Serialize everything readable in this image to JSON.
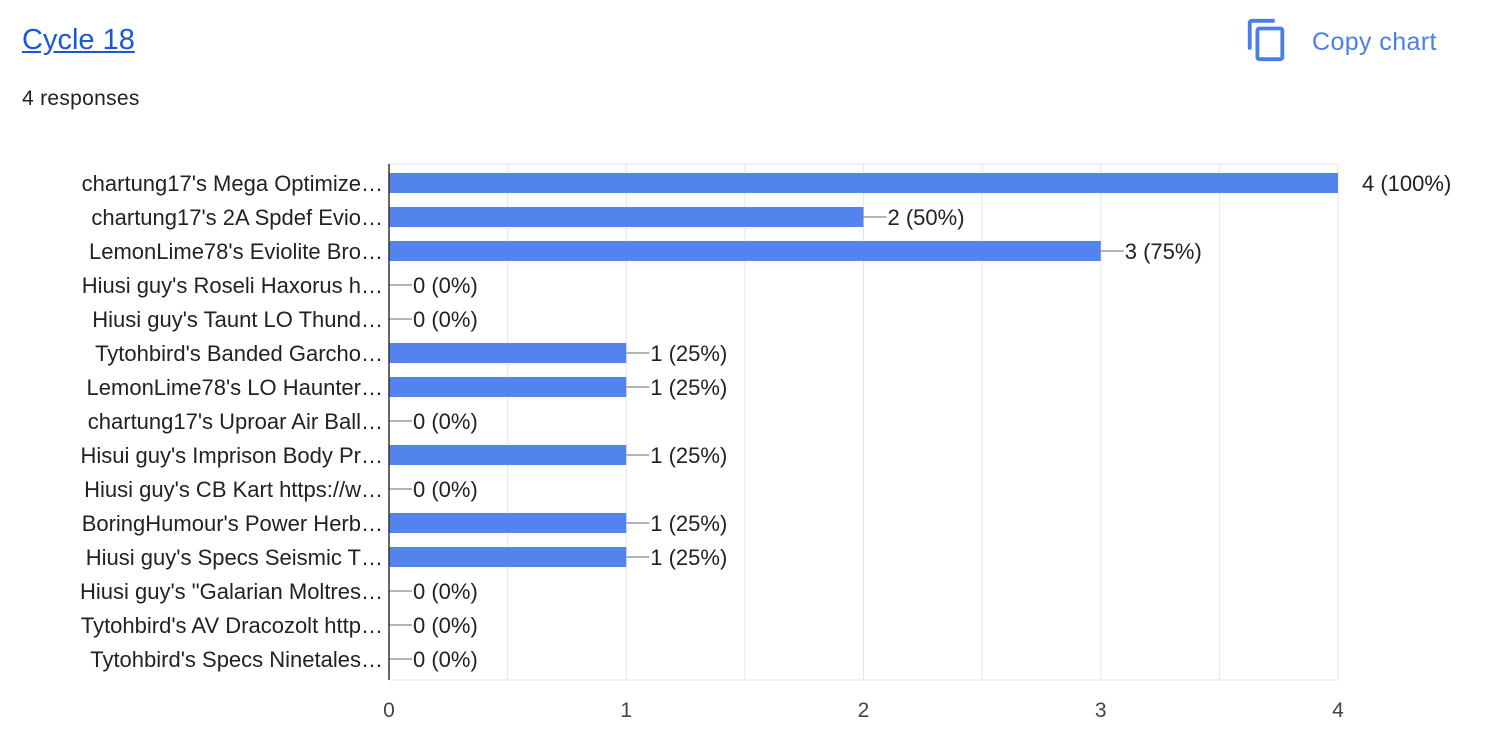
{
  "header": {
    "title": "Cycle 18",
    "responses": "4 responses",
    "copy_label": "Copy chart"
  },
  "icons": {
    "copy": "copy-icon"
  },
  "colors": {
    "bar": "#5383ec",
    "link": "#1a56d6",
    "accent": "#4a7fe8"
  },
  "chart_data": {
    "type": "bar",
    "orientation": "horizontal",
    "categories": [
      "chartung17's Mega Optimize…",
      "chartung17's 2A Spdef Evio…",
      "LemonLime78's Eviolite Bro…",
      "Hiusi guy's Roseli Haxorus h…",
      "Hiusi guy's Taunt LO Thund…",
      "Tytohbird's Banded Garcho…",
      "LemonLime78's LO Haunter…",
      "chartung17's Uproar Air Ball…",
      "Hisui guy's Imprison Body Pr…",
      "Hiusi guy's CB Kart https://w…",
      "BoringHumour's Power Herb…",
      "Hiusi guy's Specs Seismic T…",
      "Hiusi guy's \"Galarian Moltres…",
      "Tytohbird's AV Dracozolt http…",
      "Tytohbird's Specs Ninetales…"
    ],
    "values": [
      4,
      2,
      3,
      0,
      0,
      1,
      1,
      0,
      1,
      0,
      1,
      1,
      0,
      0,
      0
    ],
    "value_labels": [
      "4 (100%)",
      "2 (50%)",
      "3 (75%)",
      "0 (0%)",
      "0 (0%)",
      "1 (25%)",
      "1 (25%)",
      "0 (0%)",
      "1 (25%)",
      "0 (0%)",
      "1 (25%)",
      "1 (25%)",
      "0 (0%)",
      "0 (0%)",
      "0 (0%)"
    ],
    "xticks": [
      "0",
      "1",
      "2",
      "3",
      "4"
    ],
    "xlim": [
      0,
      4
    ],
    "grid": true,
    "title": "",
    "xlabel": "",
    "ylabel": ""
  }
}
